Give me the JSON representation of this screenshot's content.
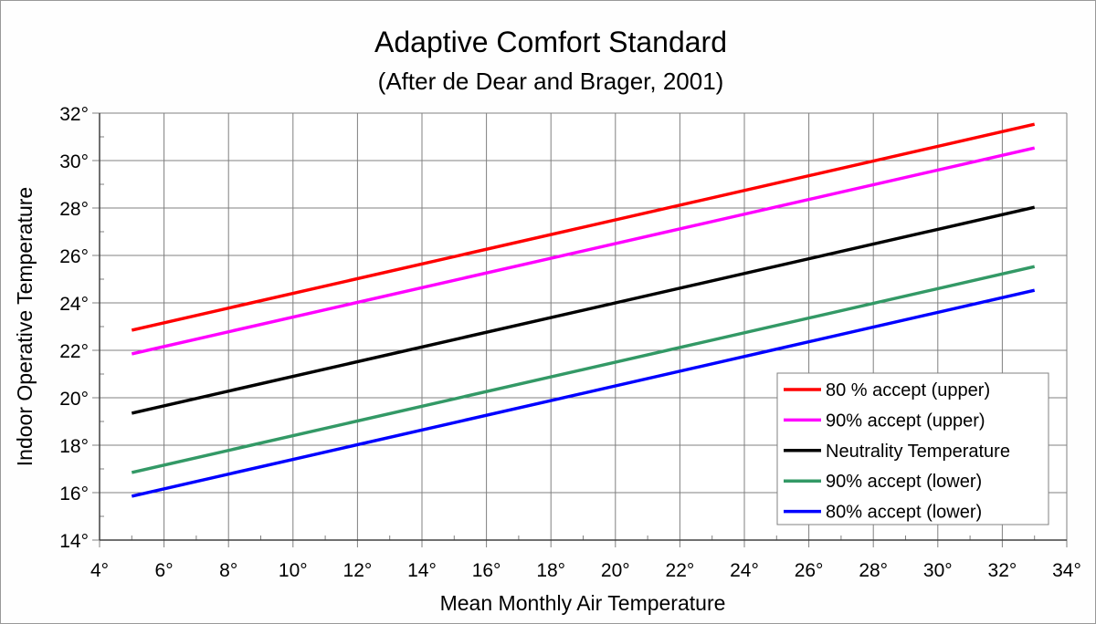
{
  "chart_data": {
    "type": "line",
    "title": "Adaptive Comfort Standard",
    "subtitle": "(After de Dear and Brager, 2001)",
    "xlabel": "Mean Monthly Air Temperature",
    "ylabel": "Indoor Operative Temperature",
    "xlim": [
      4,
      34
    ],
    "ylim": [
      14,
      32
    ],
    "xticks": [
      "4°",
      "6°",
      "8°",
      "10°",
      "12°",
      "14°",
      "16°",
      "18°",
      "20°",
      "22°",
      "24°",
      "26°",
      "28°",
      "30°",
      "32°",
      "34°"
    ],
    "yticks": [
      "14°",
      "16°",
      "18°",
      "20°",
      "22°",
      "24°",
      "26°",
      "28°",
      "30°",
      "32°"
    ],
    "xtick_values": [
      4,
      6,
      8,
      10,
      12,
      14,
      16,
      18,
      20,
      22,
      24,
      26,
      28,
      30,
      32,
      34
    ],
    "ytick_values": [
      14,
      16,
      18,
      20,
      22,
      24,
      26,
      28,
      30,
      32
    ],
    "grid": true,
    "legend_position": "bottom-right",
    "series": [
      {
        "name": "80 % accept (upper)",
        "color": "#ff0000",
        "x": [
          5,
          33
        ],
        "y": [
          22.85,
          31.53
        ]
      },
      {
        "name": "90% accept (upper)",
        "color": "#ff00ff",
        "x": [
          5,
          33
        ],
        "y": [
          21.85,
          30.53
        ]
      },
      {
        "name": "Neutrality Temperature",
        "color": "#000000",
        "x": [
          5,
          33
        ],
        "y": [
          19.35,
          28.03
        ]
      },
      {
        "name": "90% accept (lower)",
        "color": "#339966",
        "x": [
          5,
          33
        ],
        "y": [
          16.85,
          25.53
        ]
      },
      {
        "name": "80% accept (lower)",
        "color": "#0000ff",
        "x": [
          5,
          33
        ],
        "y": [
          15.85,
          24.53
        ]
      }
    ]
  }
}
